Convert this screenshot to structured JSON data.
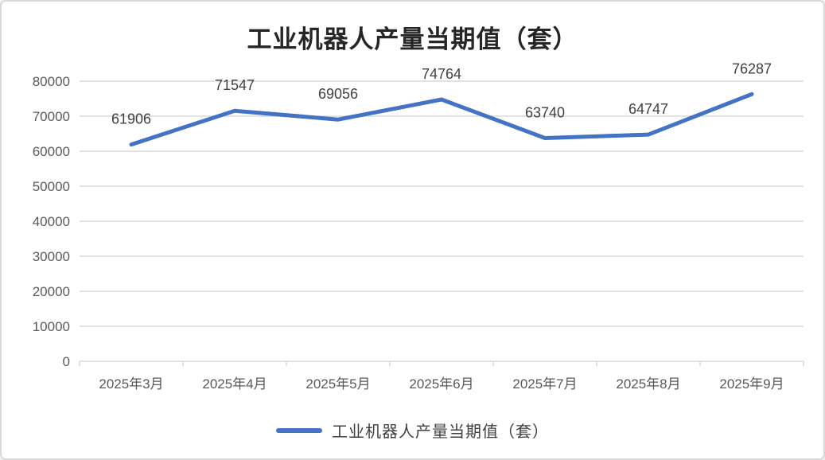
{
  "title": "工业机器人产量当期值（套）",
  "chart_data": {
    "type": "line",
    "title": "工业机器人产量当期值（套）",
    "categories": [
      "2025年3月",
      "2025年4月",
      "2025年5月",
      "2025年6月",
      "2025年7月",
      "2025年8月",
      "2025年9月"
    ],
    "series": [
      {
        "name": "工业机器人产量当期值（套）",
        "values": [
          61906,
          71547,
          69056,
          74764,
          63740,
          64747,
          76287
        ]
      }
    ],
    "xlabel": "",
    "ylabel": "",
    "ylim": [
      0,
      80000
    ],
    "yticks": [
      0,
      10000,
      20000,
      30000,
      40000,
      50000,
      60000,
      70000,
      80000
    ],
    "grid": true,
    "data_labels": true,
    "legend_position": "bottom"
  },
  "colors": {
    "line": "#4472C4",
    "gridline": "#D9D9D9",
    "axis_line": "#D9D9D9",
    "axis_text": "#595959",
    "data_label": "#404040",
    "title_text": "#262626",
    "background": "#FFFFFF",
    "border": "#D9D9D9"
  }
}
